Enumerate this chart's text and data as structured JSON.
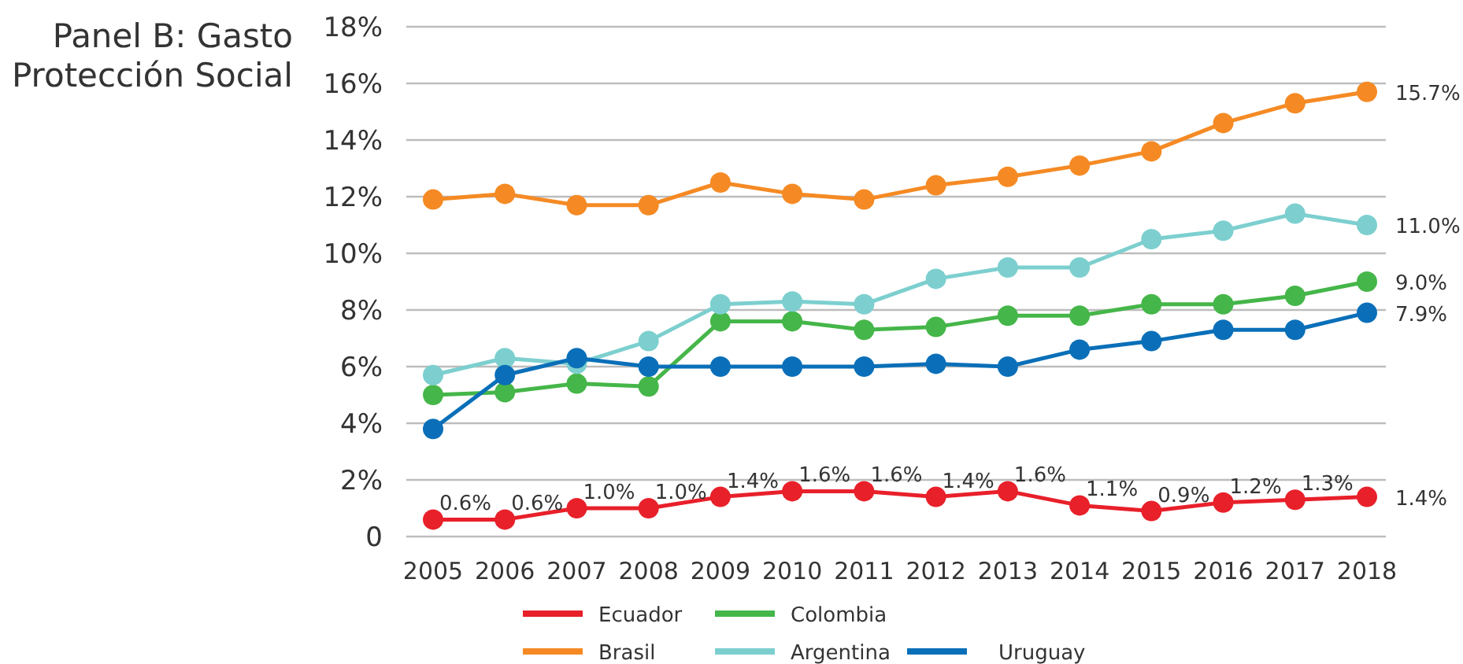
{
  "chart_data": {
    "type": "line",
    "title": "Panel B: Gasto Protección Social",
    "categories": [
      "2005",
      "2006",
      "2007",
      "2008",
      "2009",
      "2010",
      "2011",
      "2012",
      "2013",
      "2014",
      "2015",
      "2016",
      "2017",
      "2018"
    ],
    "series": [
      {
        "name": "Ecuador",
        "color": "#e8202a",
        "values": [
          0.6,
          0.6,
          1.0,
          1.0,
          1.4,
          1.6,
          1.6,
          1.4,
          1.6,
          1.1,
          0.9,
          1.2,
          1.3,
          1.4
        ],
        "value_labels": [
          "0.6%",
          "0.6%",
          "1.0%",
          "1.0%",
          "1.4%",
          "1.6%",
          "1.6%",
          "1.4%",
          "1.6%",
          "1.1%",
          "0.9%",
          "1.2%",
          "1.3%",
          "1.4%"
        ]
      },
      {
        "name": "Colombia",
        "color": "#45b649",
        "values": [
          5.0,
          5.1,
          5.4,
          5.3,
          7.6,
          7.6,
          7.3,
          7.4,
          7.8,
          7.8,
          8.2,
          8.2,
          8.5,
          9.0
        ],
        "value_labels": [
          null,
          null,
          null,
          null,
          null,
          null,
          null,
          null,
          null,
          null,
          null,
          null,
          null,
          "9.0%"
        ]
      },
      {
        "name": "Brasil",
        "color": "#f58a24",
        "values": [
          11.9,
          12.1,
          11.7,
          11.7,
          12.5,
          12.1,
          11.9,
          12.4,
          12.7,
          13.1,
          13.6,
          14.6,
          15.3,
          15.7
        ],
        "value_labels": [
          null,
          null,
          null,
          null,
          null,
          null,
          null,
          null,
          null,
          null,
          null,
          null,
          null,
          "15.7%"
        ]
      },
      {
        "name": "Argentina",
        "color": "#7dcfcf",
        "values": [
          5.7,
          6.3,
          6.1,
          6.9,
          8.2,
          8.3,
          8.2,
          9.1,
          9.5,
          9.5,
          10.5,
          10.8,
          11.4,
          11.0
        ],
        "value_labels": [
          null,
          null,
          null,
          null,
          null,
          null,
          null,
          null,
          null,
          null,
          null,
          null,
          null,
          "11.0%"
        ]
      },
      {
        "name": "Uruguay",
        "color": "#0a6fb8",
        "values": [
          3.8,
          5.7,
          6.3,
          6.0,
          6.0,
          6.0,
          6.0,
          6.1,
          6.0,
          6.6,
          6.9,
          7.3,
          7.3,
          7.9
        ],
        "value_labels": [
          null,
          null,
          null,
          null,
          null,
          null,
          null,
          null,
          null,
          null,
          null,
          null,
          null,
          "7.9%"
        ]
      }
    ],
    "ylim": [
      0,
      18
    ],
    "yticks": [
      {
        "value": 0,
        "label": "0"
      },
      {
        "value": 2,
        "label": "2%"
      },
      {
        "value": 4,
        "label": "4%"
      },
      {
        "value": 6,
        "label": "6%"
      },
      {
        "value": 8,
        "label": "8%"
      },
      {
        "value": 10,
        "label": "10%"
      },
      {
        "value": 12,
        "label": "12%"
      },
      {
        "value": 14,
        "label": "14%"
      },
      {
        "value": 16,
        "label": "16%"
      },
      {
        "value": 18,
        "label": "18%"
      }
    ],
    "grid": "y",
    "legend": "bottom",
    "marker": "circle",
    "line_style": "solid"
  }
}
